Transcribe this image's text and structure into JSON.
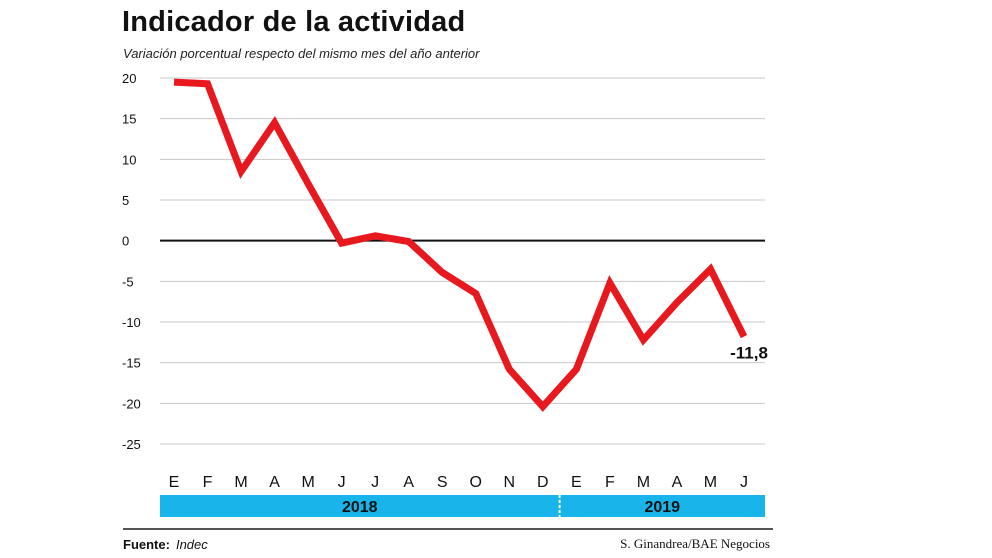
{
  "header": {
    "title": "Indicador de la actividad",
    "subtitle": "Variación porcentual respecto del mismo mes del año anterior"
  },
  "footer": {
    "source_label": "Fuente:",
    "source_value": "Indec",
    "credit": "S. Ginandrea/BAE Negocios"
  },
  "colors": {
    "line": "#e8191e",
    "year_band": "#19b4ea",
    "grid": "#c8c8c8",
    "zero": "#111111"
  },
  "chart_data": {
    "type": "line",
    "title": "Indicador de la actividad",
    "subtitle": "Variación porcentual respecto del mismo mes del año anterior",
    "xlabel": "",
    "ylabel": "",
    "categories": [
      "E",
      "F",
      "M",
      "A",
      "M",
      "J",
      "J",
      "A",
      "S",
      "O",
      "N",
      "D",
      "E",
      "F",
      "M",
      "A",
      "M",
      "J"
    ],
    "years": [
      {
        "label": "2018",
        "months": 12
      },
      {
        "label": "2019",
        "months": 6
      }
    ],
    "yticks": [
      20,
      15,
      10,
      5,
      0,
      -5,
      -10,
      -15,
      -20,
      -25
    ],
    "ylim": [
      -25,
      20
    ],
    "series": [
      {
        "values": [
          19.5,
          19.3,
          8.5,
          14.5,
          7.0,
          -0.3,
          0.6,
          -0.1,
          -3.9,
          -6.5,
          -15.8,
          -20.4,
          -15.8,
          -5.2,
          -12.2,
          -7.6,
          -3.5,
          -11.8
        ]
      }
    ],
    "annotations": [
      {
        "index": 17,
        "text": "-11,8"
      }
    ],
    "grid": true,
    "legend": "none",
    "background_image": "road-construction-workers-photo"
  }
}
